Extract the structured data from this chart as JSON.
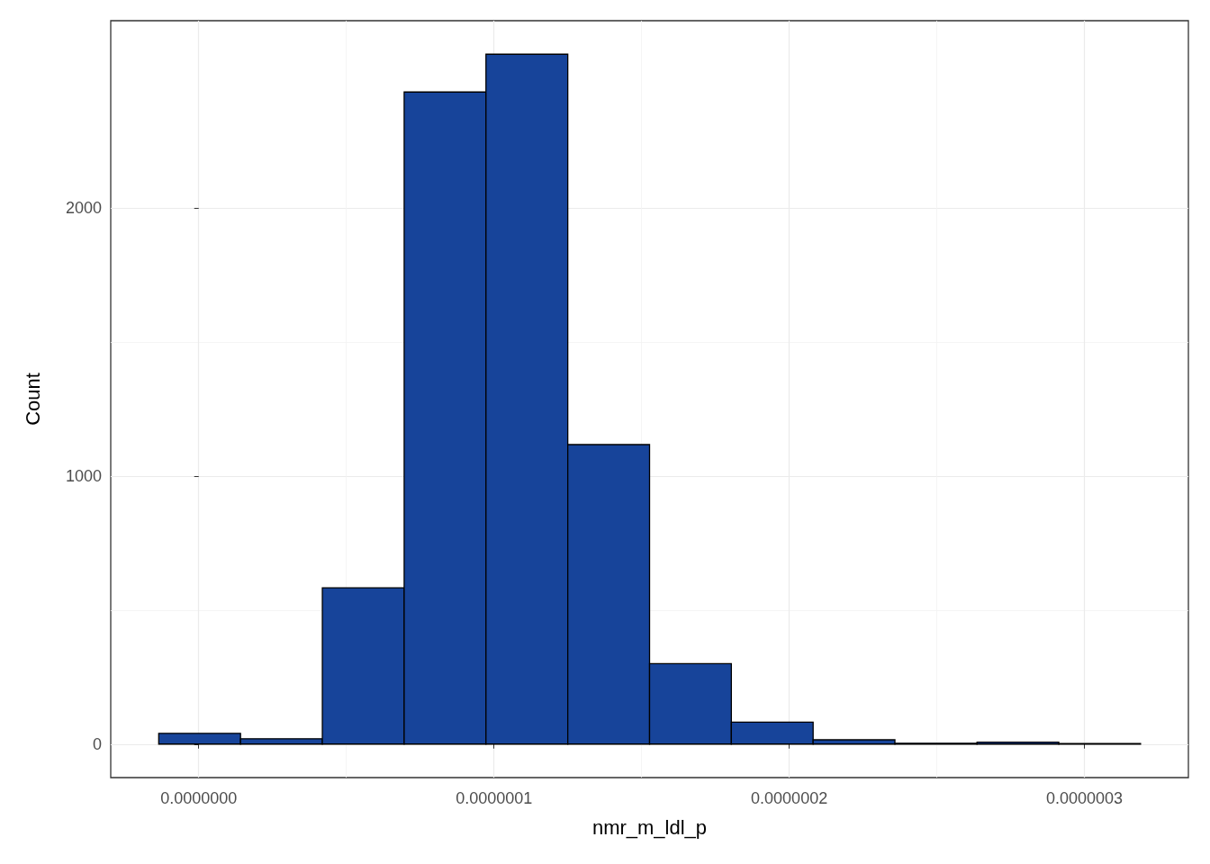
{
  "chart_data": {
    "type": "histogram",
    "xlabel": "nmr_m_ldl_p",
    "ylabel": "Count",
    "bins": [
      -1.355e-08,
      1.416e-08,
      4.187e-08,
      6.958e-08,
      9.729e-08,
      1.25e-07,
      1.527e-07,
      1.804e-07,
      2.081e-07,
      2.358e-07,
      2.636e-07,
      2.913e-07,
      3.19e-07
    ],
    "values": [
      40,
      20,
      583,
      2432,
      2573,
      1117,
      300,
      82,
      16,
      3,
      7,
      2
    ],
    "color": "#17449a",
    "xlim": [
      -2.98e-08,
      3.352e-07
    ],
    "xticks": [
      {
        "value": 0,
        "label": "0.0000000"
      },
      {
        "value": 1e-07,
        "label": "0.0000001"
      },
      {
        "value": 2e-07,
        "label": "0.0000002"
      },
      {
        "value": 3e-07,
        "label": "0.0000003"
      }
    ],
    "ylim": [
      -125,
      2698
    ],
    "yticks": [
      0,
      1000,
      2000
    ],
    "grid": true
  }
}
